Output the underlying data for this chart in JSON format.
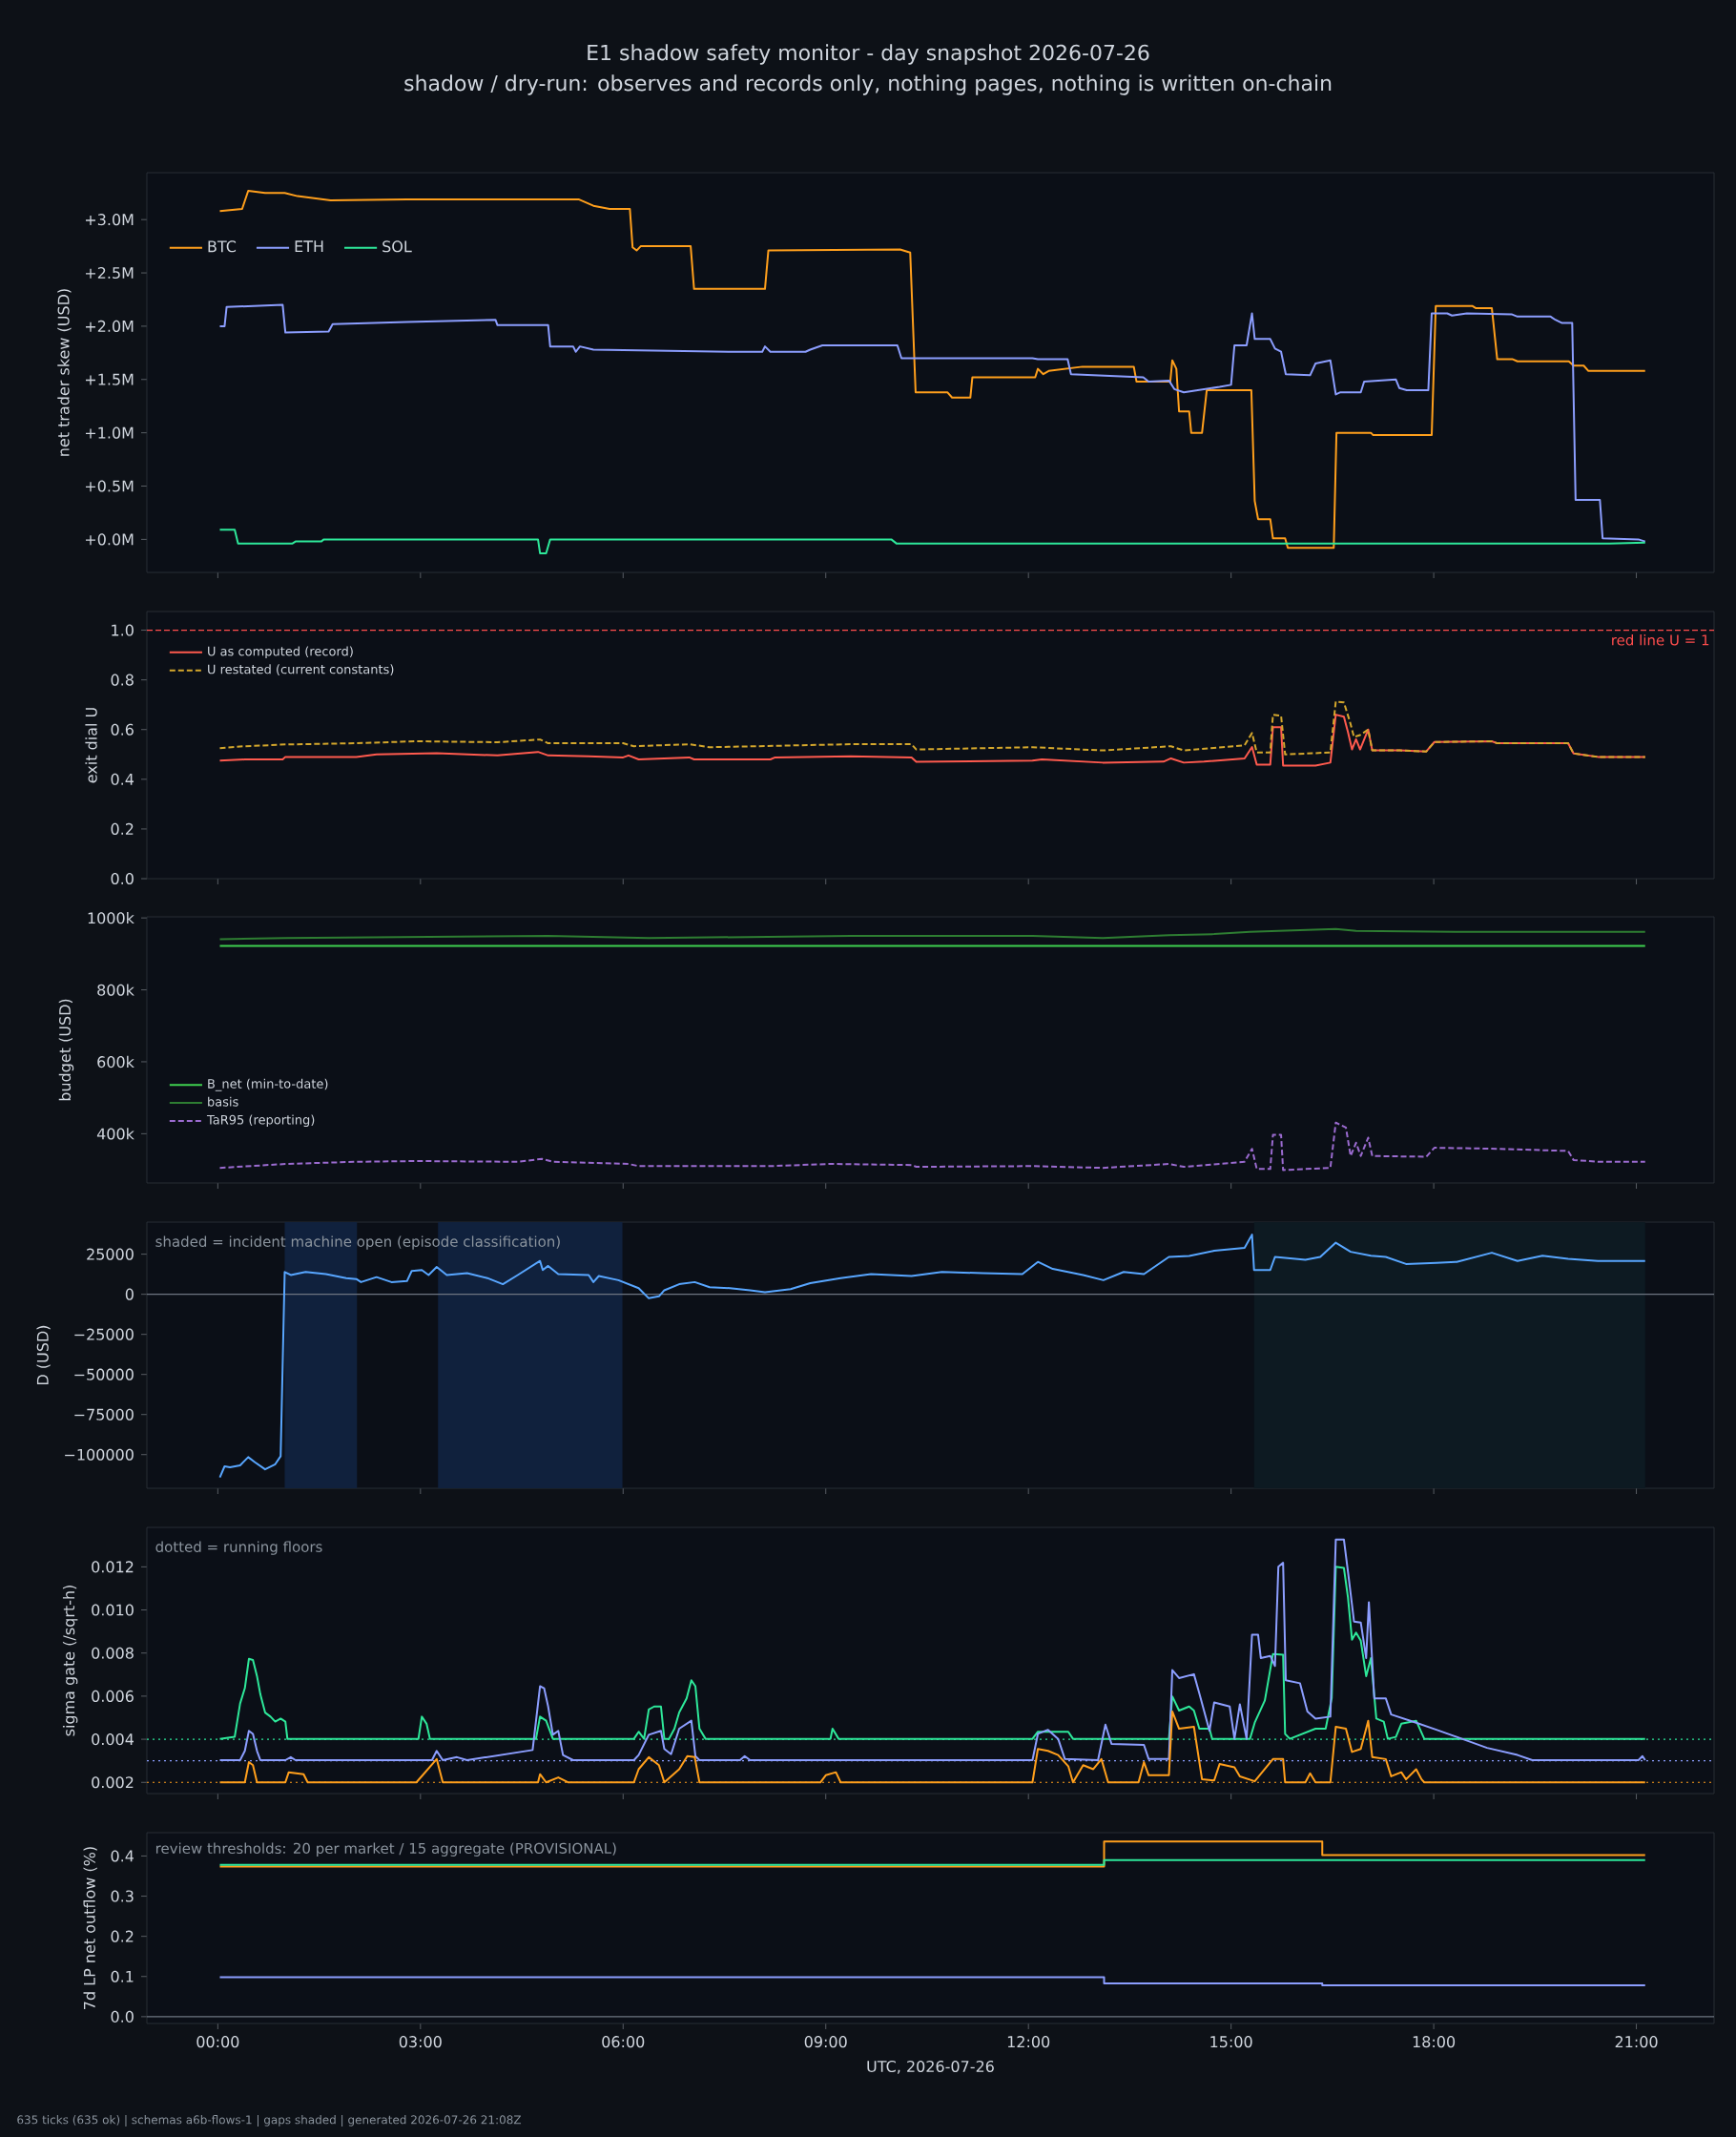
{
  "chart_data": [
    {
      "type": "line",
      "title": "E1 shadow safety monitor - day snapshot 2026-07-26",
      "subtitle": "shadow / dry-run: observes and records only, nothing pages, nothing is written on-chain",
      "ylabel": "net trader skew (USD)",
      "xlim": [
        -1.05,
        22.15
      ],
      "xticks": [
        {
          "value": 0,
          "label": null
        },
        {
          "value": 3,
          "label": null
        },
        {
          "value": 6,
          "label": null
        },
        {
          "value": 9,
          "label": null
        },
        {
          "value": 12,
          "label": null
        },
        {
          "value": 15,
          "label": null
        },
        {
          "value": 18,
          "label": null
        },
        {
          "value": 21,
          "label": null
        }
      ],
      "ylim": [
        -0.31,
        3.44
      ],
      "yticks": [
        {
          "value": 0,
          "label": "+0.0M"
        },
        {
          "value": 0.5,
          "label": "+0.5M"
        },
        {
          "value": 1,
          "label": "+1.0M"
        },
        {
          "value": 1.5,
          "label": "+1.5M"
        },
        {
          "value": 2,
          "label": "+2.0M"
        },
        {
          "value": 2.5,
          "label": "+2.5M"
        },
        {
          "value": 3,
          "label": "+3.0M"
        }
      ],
      "tick_labels": "y",
      "legend": "top left",
      "series": [
        {
          "name": "BTC",
          "color": "#ff9f1c",
          "x": [
            0.03,
            0.36,
            0.45,
            0.7,
            0.99,
            1.18,
            1.67,
            2.8,
            5.34,
            5.56,
            5.8,
            6.1,
            6.14,
            6.2,
            6.26,
            7.0,
            7.05,
            8.1,
            8.15,
            10.1,
            10.25,
            10.33,
            10.8,
            10.87,
            11.14,
            11.17,
            12.1,
            12.14,
            12.22,
            12.3,
            12.8,
            13.56,
            13.6,
            14.1,
            14.13,
            14.19,
            14.23,
            14.38,
            14.41,
            14.57,
            14.64,
            15.3,
            15.35,
            15.4,
            15.58,
            15.62,
            15.8,
            15.84,
            16.52,
            16.56,
            17.07,
            17.1,
            17.97,
            18.03,
            18.57,
            18.62,
            18.86,
            18.94,
            19.17,
            19.24,
            20.0,
            20.07,
            20.22,
            20.29,
            21.13
          ],
          "values": [
            3.08,
            3.1,
            3.27,
            3.25,
            3.25,
            3.22,
            3.18,
            3.19,
            3.19,
            3.13,
            3.1,
            3.1,
            2.74,
            2.71,
            2.75,
            2.75,
            2.35,
            2.35,
            2.71,
            2.72,
            2.69,
            1.38,
            1.38,
            1.33,
            1.33,
            1.52,
            1.52,
            1.6,
            1.55,
            1.58,
            1.62,
            1.62,
            1.48,
            1.48,
            1.68,
            1.6,
            1.2,
            1.2,
            1.0,
            1.0,
            1.4,
            1.4,
            0.36,
            0.19,
            0.19,
            0.01,
            0.01,
            -0.08,
            -0.08,
            1.0,
            1.0,
            0.98,
            0.98,
            2.19,
            2.19,
            2.17,
            2.17,
            1.69,
            1.69,
            1.67,
            1.67,
            1.63,
            1.63,
            1.58,
            1.58
          ]
        },
        {
          "name": "ETH",
          "color": "#8c9eff",
          "x": [
            0.03,
            0.1,
            0.13,
            0.96,
            1.0,
            1.64,
            1.7,
            2.8,
            4.11,
            4.14,
            4.89,
            4.92,
            5.26,
            5.3,
            5.36,
            5.56,
            7.58,
            8.06,
            8.1,
            8.18,
            8.7,
            8.77,
            8.95,
            10.06,
            10.12,
            12.06,
            12.14,
            12.58,
            12.63,
            13.7,
            13.78,
            14.08,
            14.16,
            14.3,
            14.83,
            15.0,
            15.05,
            15.23,
            15.31,
            15.35,
            15.58,
            15.65,
            15.74,
            15.81,
            16.17,
            16.25,
            16.47,
            16.55,
            16.62,
            16.92,
            16.97,
            17.44,
            17.49,
            17.6,
            17.92,
            17.97,
            18.2,
            18.27,
            18.49,
            19.16,
            19.24,
            19.73,
            19.8,
            19.9,
            20.05,
            20.1,
            20.46,
            20.5,
            21.03,
            21.13
          ],
          "values": [
            2.0,
            2.0,
            2.18,
            2.2,
            1.94,
            1.95,
            2.02,
            2.04,
            2.06,
            2.01,
            2.01,
            1.81,
            1.81,
            1.76,
            1.81,
            1.78,
            1.76,
            1.76,
            1.81,
            1.76,
            1.76,
            1.78,
            1.82,
            1.82,
            1.7,
            1.7,
            1.69,
            1.69,
            1.55,
            1.52,
            1.48,
            1.49,
            1.41,
            1.38,
            1.43,
            1.45,
            1.82,
            1.82,
            2.12,
            1.88,
            1.88,
            1.79,
            1.76,
            1.55,
            1.54,
            1.65,
            1.68,
            1.36,
            1.38,
            1.38,
            1.48,
            1.5,
            1.42,
            1.4,
            1.4,
            2.12,
            2.12,
            2.1,
            2.12,
            2.11,
            2.09,
            2.09,
            2.06,
            2.03,
            2.03,
            0.37,
            0.37,
            0.01,
            0.0,
            -0.02
          ]
        },
        {
          "name": "SOL",
          "color": "#2ee89a",
          "x": [
            0.03,
            0.25,
            0.3,
            1.1,
            1.15,
            1.53,
            1.57,
            4.74,
            4.77,
            4.86,
            4.92,
            9.97,
            10.05,
            20.6,
            21.13
          ],
          "values": [
            0.09,
            0.09,
            -0.04,
            -0.04,
            -0.02,
            -0.02,
            0.0,
            0.0,
            -0.13,
            -0.13,
            0.0,
            0.0,
            -0.04,
            -0.04,
            -0.03
          ]
        }
      ]
    },
    {
      "type": "line",
      "ylabel": "exit dial U",
      "xlim": [
        -1.05,
        22.15
      ],
      "xticks": [
        {
          "value": 0,
          "label": null
        },
        {
          "value": 3,
          "label": null
        },
        {
          "value": 6,
          "label": null
        },
        {
          "value": 9,
          "label": null
        },
        {
          "value": 12,
          "label": null
        },
        {
          "value": 15,
          "label": null
        },
        {
          "value": 18,
          "label": null
        },
        {
          "value": 21,
          "label": null
        }
      ],
      "ylim": [
        0,
        1.075
      ],
      "yticks": [
        {
          "value": 0,
          "label": "0.0"
        },
        {
          "value": 0.2,
          "label": "0.2"
        },
        {
          "value": 0.4,
          "label": "0.4"
        },
        {
          "value": 0.6,
          "label": "0.6"
        },
        {
          "value": 0.8,
          "label": "0.8"
        },
        {
          "value": 1,
          "label": "1.0"
        }
      ],
      "tick_labels": "y",
      "legend": "top left",
      "ref_lines": [
        {
          "axis": "y",
          "value": 1,
          "label": "red line U = 1",
          "color": "#ff4d4d",
          "line_style": "dashed"
        }
      ],
      "series": [
        {
          "name": "U as computed (record)",
          "color": "#ff5a4e",
          "x": [
            0.03,
            0.4,
            0.96,
            1.0,
            2.05,
            2.35,
            3.24,
            4.14,
            4.74,
            4.89,
            5.49,
            6.0,
            6.08,
            6.23,
            6.98,
            7.05,
            8.18,
            8.25,
            9.37,
            10.27,
            10.34,
            12.06,
            12.2,
            13.1,
            14.0,
            14.11,
            14.3,
            14.6,
            15.2,
            15.31,
            15.38,
            15.58,
            15.62,
            15.74,
            15.77,
            16.25,
            16.47,
            16.55,
            16.67,
            16.73,
            16.79,
            16.85,
            16.91,
            17.03,
            17.09,
            17.5,
            17.89,
            18.01,
            18.86,
            18.94,
            19.99,
            20.07,
            20.43,
            21.13
          ],
          "values": [
            0.475,
            0.48,
            0.48,
            0.49,
            0.49,
            0.5,
            0.505,
            0.496,
            0.51,
            0.496,
            0.492,
            0.488,
            0.496,
            0.48,
            0.488,
            0.48,
            0.48,
            0.488,
            0.492,
            0.488,
            0.47,
            0.475,
            0.48,
            0.467,
            0.471,
            0.484,
            0.467,
            0.471,
            0.484,
            0.53,
            0.459,
            0.459,
            0.61,
            0.61,
            0.455,
            0.455,
            0.467,
            0.66,
            0.652,
            0.59,
            0.52,
            0.561,
            0.52,
            0.6,
            0.516,
            0.516,
            0.512,
            0.55,
            0.553,
            0.545,
            0.545,
            0.504,
            0.49,
            0.49
          ]
        },
        {
          "name": "U restated (current constants)",
          "color": "#d4a72c",
          "line_style": "dashed",
          "x": [
            0.03,
            0.4,
            1.0,
            2.05,
            2.94,
            4.14,
            4.77,
            4.89,
            6.0,
            6.16,
            6.98,
            7.28,
            9.37,
            10.27,
            10.34,
            12.06,
            13.1,
            14.11,
            14.3,
            15.2,
            15.31,
            15.38,
            15.58,
            15.62,
            15.74,
            15.8,
            16.47,
            16.55,
            16.67,
            16.76,
            16.82,
            16.91,
            17.03,
            17.09,
            17.5,
            17.89,
            18.01,
            18.86,
            18.94,
            19.99,
            20.07,
            20.43,
            21.13
          ],
          "values": [
            0.525,
            0.533,
            0.54,
            0.545,
            0.553,
            0.549,
            0.56,
            0.545,
            0.545,
            0.533,
            0.541,
            0.529,
            0.541,
            0.541,
            0.52,
            0.529,
            0.516,
            0.533,
            0.516,
            0.537,
            0.586,
            0.508,
            0.508,
            0.66,
            0.656,
            0.5,
            0.508,
            0.713,
            0.709,
            0.631,
            0.57,
            0.578,
            0.6,
            0.516,
            0.516,
            0.512,
            0.55,
            0.553,
            0.545,
            0.545,
            0.504,
            0.49,
            0.49
          ]
        }
      ]
    },
    {
      "type": "line",
      "ylabel": "budget (USD)",
      "xlim": [
        -1.05,
        22.15
      ],
      "xticks": [
        {
          "value": 0,
          "label": null
        },
        {
          "value": 3,
          "label": null
        },
        {
          "value": 6,
          "label": null
        },
        {
          "value": 9,
          "label": null
        },
        {
          "value": 12,
          "label": null
        },
        {
          "value": 15,
          "label": null
        },
        {
          "value": 18,
          "label": null
        },
        {
          "value": 21,
          "label": null
        }
      ],
      "ylim": [
        263,
        1003
      ],
      "yticks": [
        {
          "value": 400,
          "label": "400k"
        },
        {
          "value": 600,
          "label": "600k"
        },
        {
          "value": 800,
          "label": "800k"
        },
        {
          "value": 1000,
          "label": "1000k"
        }
      ],
      "tick_labels": "y",
      "legend": "bottom left",
      "series": [
        {
          "name": "B_net (min-to-date)",
          "color": "#3fd04f",
          "x": [
            0.03,
            21.13
          ],
          "values": [
            922,
            922
          ]
        },
        {
          "name": "basis",
          "color": "#2e7d32",
          "x": [
            0.03,
            1.0,
            4.89,
            6.38,
            9.37,
            12.06,
            13.1,
            14.08,
            14.75,
            15.28,
            16.55,
            16.85,
            18.34,
            21.13
          ],
          "values": [
            941,
            944,
            950,
            944,
            950,
            950,
            944,
            952,
            955,
            961,
            969,
            964,
            961,
            961
          ]
        },
        {
          "name": "TaR95 (reporting)",
          "color": "#9b6bd0",
          "line_style": "dashed",
          "x": [
            0.03,
            1.0,
            2.05,
            2.94,
            4.44,
            4.8,
            4.96,
            6.08,
            6.23,
            8.18,
            9.07,
            10.27,
            10.34,
            12.06,
            13.1,
            14.08,
            14.3,
            15.2,
            15.31,
            15.38,
            15.58,
            15.62,
            15.74,
            15.77,
            16.47,
            16.55,
            16.7,
            16.77,
            16.85,
            16.92,
            17.03,
            17.09,
            17.89,
            18.01,
            18.94,
            19.99,
            20.07,
            20.43,
            21.13
          ],
          "values": [
            305,
            316,
            322,
            324,
            322,
            330,
            322,
            316,
            310,
            310,
            316,
            313,
            308,
            310,
            305,
            316,
            308,
            322,
            358,
            302,
            302,
            397,
            397,
            299,
            305,
            431,
            417,
            338,
            375,
            338,
            389,
            338,
            336,
            361,
            358,
            352,
            327,
            322,
            322
          ]
        }
      ]
    },
    {
      "type": "line",
      "ylabel": "D (USD)",
      "xlim": [
        -1.05,
        22.15
      ],
      "xticks": [
        {
          "value": 0,
          "label": null
        },
        {
          "value": 3,
          "label": null
        },
        {
          "value": 6,
          "label": null
        },
        {
          "value": 9,
          "label": null
        },
        {
          "value": 12,
          "label": null
        },
        {
          "value": 15,
          "label": null
        },
        {
          "value": 18,
          "label": null
        },
        {
          "value": 21,
          "label": null
        }
      ],
      "ylim": [
        -121000,
        45000
      ],
      "yticks": [
        {
          "value": -100000,
          "label": "−100000"
        },
        {
          "value": -75000,
          "label": "−75000"
        },
        {
          "value": -50000,
          "label": "−50000"
        },
        {
          "value": -25000,
          "label": "−25000"
        },
        {
          "value": 0,
          "label": "0"
        },
        {
          "value": 25000,
          "label": "25000"
        }
      ],
      "tick_labels": "y",
      "annotations": [
        "shaded = incident machine open (episode classification)"
      ],
      "bands": [
        {
          "axis": "x",
          "from": 0.99,
          "to": 2.06,
          "color": "#10213d"
        },
        {
          "axis": "x",
          "from": 3.26,
          "to": 5.99,
          "color": "#10213d"
        },
        {
          "axis": "x",
          "from": 15.34,
          "to": 21.13,
          "color": "#0d1a22"
        }
      ],
      "ref_lines": [
        {
          "axis": "y",
          "value": 0,
          "color": "#6e7681"
        }
      ],
      "series": [
        {
          "color": "#58a6ff",
          "x": [
            0.03,
            0.1,
            0.18,
            0.33,
            0.45,
            0.55,
            0.7,
            0.85,
            0.93,
            0.99,
            1.08,
            1.3,
            1.6,
            1.9,
            2.05,
            2.12,
            2.35,
            2.57,
            2.8,
            2.87,
            3.02,
            3.12,
            3.24,
            3.39,
            3.69,
            3.99,
            4.22,
            4.44,
            4.77,
            4.81,
            4.89,
            5.04,
            5.49,
            5.56,
            5.64,
            5.93,
            6.08,
            6.23,
            6.38,
            6.53,
            6.61,
            6.83,
            7.06,
            7.28,
            7.58,
            7.88,
            8.1,
            8.48,
            8.77,
            9.22,
            9.67,
            10.27,
            10.72,
            11.32,
            11.91,
            12.14,
            12.36,
            12.81,
            13.11,
            13.41,
            13.71,
            14.08,
            14.38,
            14.75,
            15.2,
            15.31,
            15.34,
            15.58,
            15.65,
            16.1,
            16.32,
            16.55,
            16.77,
            17.07,
            17.29,
            17.59,
            18.04,
            18.34,
            18.86,
            19.24,
            19.61,
            19.99,
            20.43,
            21.13
          ],
          "values": [
            -114200,
            -107300,
            -107900,
            -106700,
            -101600,
            -104800,
            -109200,
            -106000,
            -101000,
            13900,
            12000,
            13900,
            12600,
            10100,
            9500,
            7600,
            10700,
            7600,
            8200,
            14500,
            15100,
            12000,
            17000,
            12000,
            13200,
            10100,
            6300,
            12000,
            20800,
            15100,
            17700,
            12600,
            12000,
            7600,
            11400,
            8800,
            6300,
            3800,
            -2500,
            -1300,
            2500,
            6300,
            7600,
            4400,
            3800,
            2500,
            1300,
            3200,
            6900,
            10100,
            12600,
            11400,
            13900,
            13200,
            12600,
            20200,
            15800,
            12000,
            8800,
            13900,
            12600,
            23300,
            23900,
            27100,
            29000,
            37200,
            15100,
            15100,
            23300,
            21500,
            23300,
            32200,
            26500,
            24000,
            23300,
            18900,
            19600,
            20200,
            25900,
            20800,
            24000,
            22100,
            20800,
            20800
          ]
        }
      ]
    },
    {
      "type": "line",
      "ylabel": "sigma gate (/sqrt-h)",
      "xlim": [
        -1.05,
        22.15
      ],
      "xticks": [
        {
          "value": 0,
          "label": null
        },
        {
          "value": 3,
          "label": null
        },
        {
          "value": 6,
          "label": null
        },
        {
          "value": 9,
          "label": null
        },
        {
          "value": 12,
          "label": null
        },
        {
          "value": 15,
          "label": null
        },
        {
          "value": 18,
          "label": null
        },
        {
          "value": 21,
          "label": null
        }
      ],
      "ylim": [
        0.00148,
        0.01383
      ],
      "yticks": [
        {
          "value": 0.002,
          "label": "0.002"
        },
        {
          "value": 0.004,
          "label": "0.004"
        },
        {
          "value": 0.006,
          "label": "0.006"
        },
        {
          "value": 0.008,
          "label": "0.008"
        },
        {
          "value": 0.01,
          "label": "0.010"
        },
        {
          "value": 0.012,
          "label": "0.012"
        }
      ],
      "tick_labels": "y",
      "annotations": [
        "dotted = running floors"
      ],
      "ref_lines": [
        {
          "axis": "y",
          "value": 0.004,
          "color": "#2ee89a",
          "line_style": "dotted"
        },
        {
          "axis": "y",
          "value": 0.003,
          "color": "#8c9eff",
          "line_style": "dotted"
        },
        {
          "axis": "y",
          "value": 0.002,
          "color": "#ff9f1c",
          "line_style": "dotted"
        }
      ],
      "series": [
        {
          "color": "#2ee89a",
          "x": [
            0.03,
            0.25,
            0.33,
            0.4,
            0.46,
            0.52,
            0.58,
            0.63,
            0.7,
            0.78,
            0.85,
            0.93,
            1.0,
            1.03,
            2.97,
            3.02,
            3.09,
            3.14,
            4.71,
            4.77,
            4.86,
            4.96,
            6.16,
            6.23,
            6.31,
            6.38,
            6.46,
            6.56,
            6.61,
            6.68,
            6.76,
            6.83,
            6.94,
            7.01,
            7.07,
            7.13,
            7.22,
            9.07,
            9.1,
            9.19,
            12.06,
            12.14,
            12.59,
            12.66,
            14.08,
            14.13,
            14.23,
            14.38,
            14.45,
            14.53,
            14.68,
            14.72,
            15.28,
            15.35,
            15.5,
            15.62,
            15.77,
            15.8,
            15.87,
            16.25,
            16.4,
            16.49,
            16.55,
            16.67,
            16.73,
            16.79,
            16.85,
            16.92,
            17.0,
            17.07,
            17.15,
            17.26,
            17.32,
            17.44,
            17.52,
            17.74,
            17.86,
            21.13
          ],
          "values": [
            0.00402,
            0.00411,
            0.00566,
            0.00637,
            0.00773,
            0.00768,
            0.00693,
            0.00608,
            0.00524,
            0.00505,
            0.00482,
            0.00496,
            0.00482,
            0.00402,
            0.00402,
            0.00505,
            0.00472,
            0.00402,
            0.00402,
            0.00505,
            0.00486,
            0.00402,
            0.00402,
            0.00435,
            0.00402,
            0.00538,
            0.00552,
            0.00552,
            0.00402,
            0.00402,
            0.00449,
            0.00524,
            0.0059,
            0.00674,
            0.00646,
            0.00449,
            0.00402,
            0.00402,
            0.00449,
            0.00402,
            0.00402,
            0.00435,
            0.00435,
            0.00402,
            0.00402,
            0.00599,
            0.00533,
            0.00552,
            0.00533,
            0.00449,
            0.00449,
            0.00402,
            0.00402,
            0.00477,
            0.0058,
            0.00796,
            0.00792,
            0.00425,
            0.00402,
            0.00449,
            0.00449,
            0.0059,
            0.012,
            0.01195,
            0.01059,
            0.00862,
            0.00895,
            0.00857,
            0.00693,
            0.00777,
            0.00496,
            0.00482,
            0.00402,
            0.00411,
            0.00472,
            0.00486,
            0.00402,
            0.00402
          ]
        },
        {
          "color": "#8c9eff",
          "x": [
            0.03,
            0.33,
            0.4,
            0.46,
            0.52,
            0.58,
            0.63,
            1.0,
            1.08,
            1.15,
            3.17,
            3.24,
            3.33,
            3.54,
            3.69,
            4.66,
            4.77,
            4.83,
            4.89,
            4.96,
            5.04,
            5.11,
            5.26,
            6.16,
            6.23,
            6.38,
            6.56,
            6.61,
            6.71,
            6.83,
            7.01,
            7.07,
            7.13,
            7.73,
            7.8,
            7.88,
            12.06,
            12.14,
            12.29,
            12.44,
            12.54,
            13.03,
            13.14,
            13.23,
            13.71,
            13.78,
            14.08,
            14.13,
            14.23,
            14.45,
            14.53,
            14.68,
            14.75,
            14.98,
            15.05,
            15.13,
            15.23,
            15.31,
            15.4,
            15.44,
            15.58,
            15.65,
            15.7,
            15.77,
            15.81,
            16.02,
            16.13,
            16.25,
            16.47,
            16.55,
            16.67,
            16.74,
            16.82,
            16.92,
            17.0,
            17.04,
            17.12,
            17.29,
            17.37,
            17.74,
            18.04,
            18.34,
            18.79,
            19.24,
            19.46,
            21.03,
            21.09,
            21.13
          ],
          "values": [
            0.00303,
            0.00303,
            0.00346,
            0.00439,
            0.00425,
            0.00346,
            0.00303,
            0.00303,
            0.00317,
            0.00303,
            0.00303,
            0.00346,
            0.00303,
            0.00317,
            0.00303,
            0.0035,
            0.00646,
            0.00637,
            0.00552,
            0.00421,
            0.00439,
            0.00327,
            0.00303,
            0.00303,
            0.00327,
            0.00421,
            0.00439,
            0.00355,
            0.00331,
            0.00449,
            0.00486,
            0.00322,
            0.00303,
            0.00303,
            0.00322,
            0.00303,
            0.00303,
            0.00425,
            0.00444,
            0.00402,
            0.00308,
            0.00303,
            0.00468,
            0.00378,
            0.00374,
            0.00308,
            0.00308,
            0.00721,
            0.00684,
            0.00702,
            0.00613,
            0.00439,
            0.00571,
            0.00552,
            0.00402,
            0.00562,
            0.00402,
            0.00885,
            0.00885,
            0.00777,
            0.00787,
            0.0074,
            0.012,
            0.01219,
            0.00674,
            0.0066,
            0.00529,
            0.00496,
            0.00505,
            0.01327,
            0.01327,
            0.01153,
            0.00946,
            0.00942,
            0.00777,
            0.01036,
            0.0059,
            0.0059,
            0.00515,
            0.00477,
            0.00444,
            0.00411,
            0.0036,
            0.00327,
            0.00303,
            0.00303,
            0.00322,
            0.00303
          ]
        },
        {
          "color": "#ff9f1c",
          "x": [
            0.03,
            0.4,
            0.46,
            0.52,
            0.58,
            1.0,
            1.05,
            1.27,
            1.33,
            2.94,
            3.24,
            3.33,
            4.74,
            4.77,
            4.86,
            5.04,
            5.19,
            6.16,
            6.23,
            6.38,
            6.53,
            6.61,
            6.83,
            6.95,
            7.06,
            7.13,
            8.92,
            9.0,
            9.15,
            9.22,
            12.06,
            12.14,
            12.29,
            12.44,
            12.59,
            12.66,
            12.81,
            12.96,
            13.08,
            13.18,
            13.63,
            13.71,
            13.78,
            14.08,
            14.13,
            14.23,
            14.45,
            14.57,
            14.75,
            14.83,
            15.05,
            15.13,
            15.35,
            15.62,
            15.77,
            15.8,
            16.1,
            16.17,
            16.25,
            16.47,
            16.55,
            16.7,
            16.79,
            16.92,
            17.03,
            17.09,
            17.29,
            17.37,
            17.52,
            17.59,
            17.74,
            17.82,
            17.86,
            21.13
          ],
          "values": [
            0.002,
            0.002,
            0.00294,
            0.0028,
            0.002,
            0.002,
            0.00247,
            0.00238,
            0.002,
            0.002,
            0.00308,
            0.002,
            0.002,
            0.00238,
            0.002,
            0.00223,
            0.002,
            0.002,
            0.00261,
            0.00317,
            0.0028,
            0.002,
            0.00261,
            0.00322,
            0.00317,
            0.002,
            0.002,
            0.00233,
            0.00247,
            0.002,
            0.002,
            0.00355,
            0.00346,
            0.00327,
            0.00275,
            0.002,
            0.0028,
            0.00261,
            0.00308,
            0.002,
            0.002,
            0.00294,
            0.00233,
            0.00233,
            0.00529,
            0.00449,
            0.00458,
            0.00214,
            0.00209,
            0.00285,
            0.0027,
            0.00228,
            0.00205,
            0.00308,
            0.00308,
            0.002,
            0.002,
            0.00242,
            0.002,
            0.002,
            0.00458,
            0.00449,
            0.00341,
            0.00355,
            0.00486,
            0.00317,
            0.00308,
            0.00228,
            0.00247,
            0.00214,
            0.00261,
            0.00214,
            0.002,
            0.002
          ]
        }
      ]
    },
    {
      "type": "step",
      "ylabel": "7d LP net outflow (%)",
      "xlabel": "UTC, 2026-07-26",
      "xlim": [
        -1.05,
        22.15
      ],
      "xticks": [
        {
          "value": 0,
          "label": "00:00"
        },
        {
          "value": 3,
          "label": "03:00"
        },
        {
          "value": 6,
          "label": "06:00"
        },
        {
          "value": 9,
          "label": "09:00"
        },
        {
          "value": 12,
          "label": "12:00"
        },
        {
          "value": 15,
          "label": "15:00"
        },
        {
          "value": 18,
          "label": "18:00"
        },
        {
          "value": 21,
          "label": "21:00"
        }
      ],
      "ylim": [
        -0.017,
        0.458
      ],
      "yticks": [
        {
          "value": 0,
          "label": "0.0"
        },
        {
          "value": 0.1,
          "label": "0.1"
        },
        {
          "value": 0.2,
          "label": "0.2"
        },
        {
          "value": 0.3,
          "label": "0.3"
        },
        {
          "value": 0.4,
          "label": "0.4"
        }
      ],
      "annotations": [
        "review thresholds: 20 per market / 15 aggregate (PROVISIONAL)",
        "635 ticks (635 ok) | schemas a6b-flows-1 | gaps shaded | generated 2026-07-26 21:08Z"
      ],
      "ref_lines": [
        {
          "axis": "y",
          "value": 0,
          "color": "#6e7681"
        }
      ],
      "series": [
        {
          "color": "#ff9f1c",
          "x": [
            0.03,
            13.12,
            16.35,
            21.13
          ],
          "values": [
            0.374,
            0.436,
            0.402,
            0.402
          ]
        },
        {
          "color": "#2ee89a",
          "x": [
            0.03,
            13.12,
            16.35,
            21.13
          ],
          "values": [
            0.378,
            0.39,
            0.39,
            0.39
          ]
        },
        {
          "color": "#8c9eff",
          "x": [
            0.03,
            13.12,
            16.35,
            21.13
          ],
          "values": [
            0.098,
            0.083,
            0.078,
            0.078
          ]
        }
      ]
    }
  ]
}
